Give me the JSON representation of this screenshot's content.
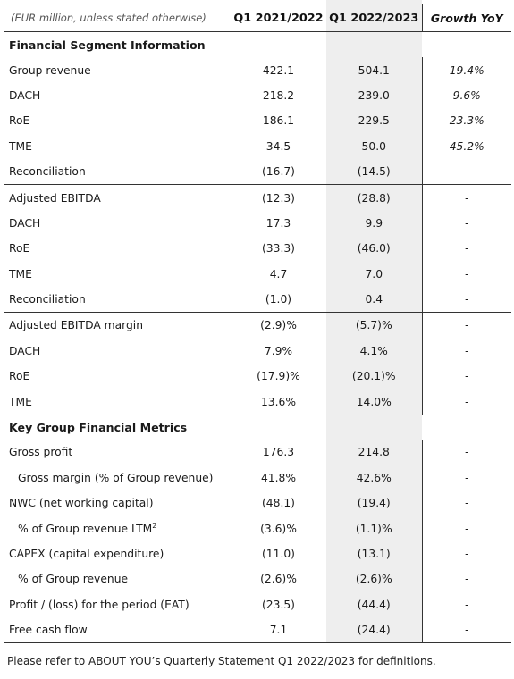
{
  "header": {
    "unit_note": "(EUR million, unless stated otherwise)",
    "col1": "Q1 2021/2022",
    "col2": "Q1 2022/2023",
    "col3": "Growth YoY"
  },
  "rows": [
    {
      "label": "Financial Segment Information",
      "type": "section",
      "v1": "",
      "v2": "",
      "g": ""
    },
    {
      "label": "Group revenue",
      "type": "row",
      "v1": "422.1",
      "v2": "504.1",
      "g": "19.4%"
    },
    {
      "label": "DACH",
      "type": "row",
      "v1": "218.2",
      "v2": "239.0",
      "g": "9.6%"
    },
    {
      "label": "RoE",
      "type": "row",
      "v1": "186.1",
      "v2": "229.5",
      "g": "23.3%"
    },
    {
      "label": "TME",
      "type": "row",
      "v1": "34.5",
      "v2": "50.0",
      "g": "45.2%"
    },
    {
      "label": "Reconciliation",
      "type": "row",
      "v1": "(16.7)",
      "v2": "(14.5)",
      "g": "-"
    },
    {
      "label": "Adjusted EBITDA",
      "type": "group",
      "v1": "(12.3)",
      "v2": "(28.8)",
      "g": "-"
    },
    {
      "label": "DACH",
      "type": "row",
      "v1": "17.3",
      "v2": "9.9",
      "g": "-"
    },
    {
      "label": "RoE",
      "type": "row",
      "v1": "(33.3)",
      "v2": "(46.0)",
      "g": "-"
    },
    {
      "label": "TME",
      "type": "row",
      "v1": "4.7",
      "v2": "7.0",
      "g": "-"
    },
    {
      "label": "Reconciliation",
      "type": "row",
      "v1": "(1.0)",
      "v2": "0.4",
      "g": "-"
    },
    {
      "label": "Adjusted EBITDA margin",
      "type": "group",
      "v1": "(2.9)%",
      "v2": "(5.7)%",
      "g": "-"
    },
    {
      "label": "DACH",
      "type": "row",
      "v1": "7.9%",
      "v2": "4.1%",
      "g": "-"
    },
    {
      "label": "RoE",
      "type": "row",
      "v1": "(17.9)%",
      "v2": "(20.1)%",
      "g": "-"
    },
    {
      "label": "TME",
      "type": "row",
      "v1": "13.6%",
      "v2": "14.0%",
      "g": "-"
    },
    {
      "label": "Key Group Financial Metrics",
      "type": "section",
      "v1": "",
      "v2": "",
      "g": ""
    },
    {
      "label": "Gross profit",
      "type": "row",
      "v1": "176.3",
      "v2": "214.8",
      "g": "-"
    },
    {
      "label": "Gross margin (% of Group revenue)",
      "type": "sub",
      "v1": "41.8%",
      "v2": "42.6%",
      "g": "-"
    },
    {
      "label": "NWC (net working capital)",
      "type": "row",
      "v1": "(48.1)",
      "v2": "(19.4)",
      "g": "-"
    },
    {
      "label": "% of Group revenue LTM",
      "sup": "2",
      "type": "sub",
      "v1": "(3.6)%",
      "v2": "(1.1)%",
      "g": "-"
    },
    {
      "label": "CAPEX (capital expenditure)",
      "type": "row",
      "v1": "(11.0)",
      "v2": "(13.1)",
      "g": "-"
    },
    {
      "label": "% of Group revenue",
      "type": "sub",
      "v1": "(2.6)%",
      "v2": "(2.6)%",
      "g": "-"
    },
    {
      "label": "Profit / (loss) for the period (EAT)",
      "type": "row",
      "v1": "(23.5)",
      "v2": "(44.4)",
      "g": "-"
    },
    {
      "label": "Free cash flow",
      "type": "row",
      "v1": "7.1",
      "v2": "(24.4)",
      "g": "-"
    }
  ],
  "footnote": "Please refer to ABOUT YOU’s Quarterly Statement Q1 2022/2023 for definitions."
}
